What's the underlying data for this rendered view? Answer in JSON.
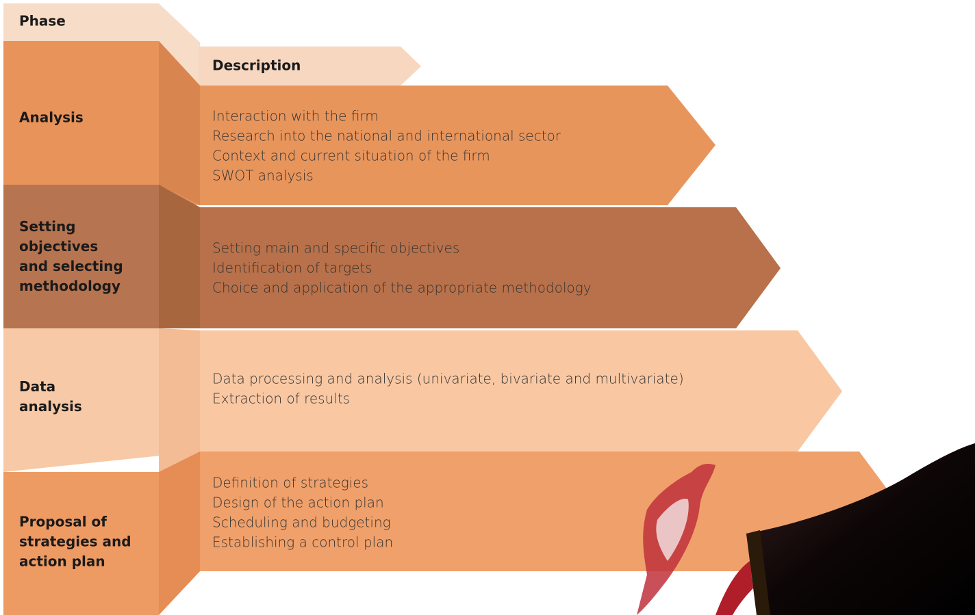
{
  "header": {
    "phase": "Phase",
    "description": "Description"
  },
  "rows": [
    {
      "phase": [
        "Analysis"
      ],
      "description": [
        "Interaction with the firm",
        "Research into the national and international sector",
        "Context and current situation of the firm",
        "SWOT analysis"
      ]
    },
    {
      "phase": [
        "Setting",
        "objectives",
        "and selecting",
        "methodology"
      ],
      "description": [
        "Setting main and specific objectives",
        "Identification of targets",
        "Choice and application of the appropriate methodology"
      ]
    },
    {
      "phase": [
        "Data",
        "analysis"
      ],
      "description": [
        "Data processing and analysis (univariate, bivariate and multivariate)",
        "Extraction of results"
      ]
    },
    {
      "phase": [
        "Proposal of",
        "strategies and",
        "action plan"
      ],
      "description": [
        "Definition of strategies",
        "Design of the action plan",
        "Scheduling and budgeting",
        "Establishing a control plan"
      ]
    }
  ]
}
